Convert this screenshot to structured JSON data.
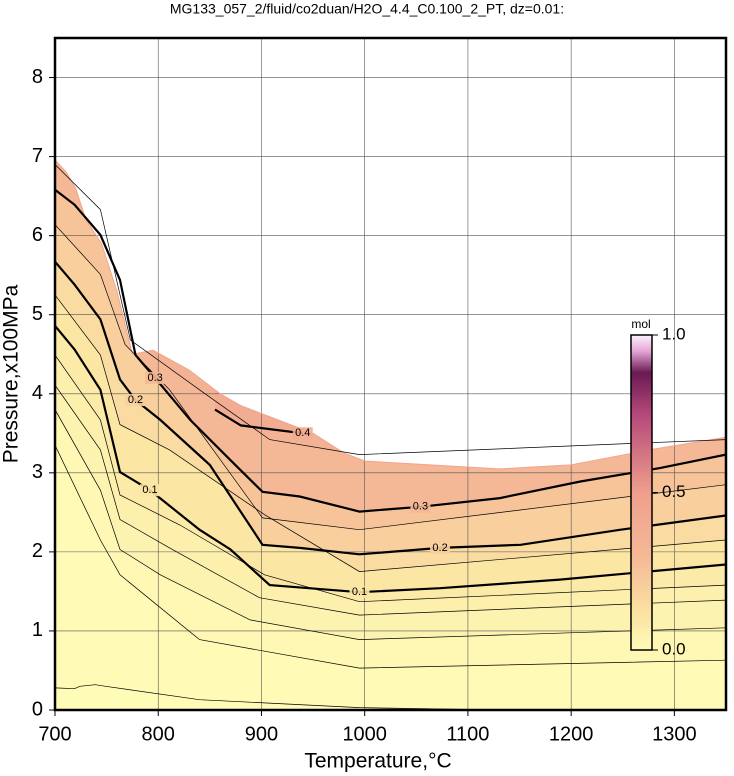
{
  "chart_data": {
    "type": "contour",
    "title": "MG133_057_2/fluid/co2duan/H2O_4.4_C0.100_2_PT, dz=0.01:",
    "x_label": "Temperature,°C",
    "y_label": "Pressure,x100MPa",
    "xlim": [
      700,
      1350
    ],
    "ylim": [
      0,
      8.5
    ],
    "xticks": [
      700,
      800,
      900,
      1000,
      1100,
      1200,
      1300
    ],
    "yticks": [
      0,
      1,
      2,
      3,
      4,
      5,
      6,
      7,
      8
    ],
    "grid": true,
    "colorbar": {
      "label": "mol",
      "lim": [
        0,
        1
      ],
      "ticks": [
        {
          "value": 0,
          "label": "0.0"
        },
        0.5,
        {
          "value": 1,
          "label": "1.0"
        }
      ],
      "colormap": [
        {
          "value": 0,
          "color": "#fffcb8"
        },
        {
          "value": 0.1,
          "color": "#fbe6a4"
        },
        {
          "value": 0.3,
          "color": "#f5b896"
        },
        {
          "value": 0.5,
          "color": "#ef9f8c"
        },
        {
          "value": 0.75,
          "color": "#b4487a"
        },
        {
          "value": 0.88,
          "color": "#6a1a52"
        },
        {
          "value": 0.95,
          "color": "#e6a8d6"
        },
        {
          "value": 1,
          "color": "#fff2ff"
        }
      ]
    },
    "extent": {
      "x": [
        700,
        711,
        720,
        730,
        745,
        760,
        775,
        795,
        830,
        860,
        880,
        910,
        950,
        980,
        1000,
        1130,
        1200,
        1280,
        1350
      ],
      "values": [
        6.96,
        6.8,
        6.6,
        6.2,
        5.9,
        5.3,
        4.5,
        4.55,
        4.3,
        4.0,
        3.85,
        3.7,
        3.5,
        3.25,
        3.15,
        3.05,
        3.1,
        3.3,
        3.45
      ]
    },
    "contours": [
      {
        "level": 0.01,
        "style": "thin",
        "x": [
          700,
          719,
          724,
          739,
          749,
          840,
          995,
          1131,
          1350
        ],
        "values": [
          0.28,
          0.27,
          0.3,
          0.32,
          0.3,
          0.13,
          0.03,
          0.0,
          0.0
        ]
      },
      {
        "level": 0.02,
        "style": "thin",
        "x": [
          700,
          744,
          763,
          840,
          995,
          1350
        ],
        "values": [
          3.35,
          2.15,
          1.71,
          0.89,
          0.53,
          0.63
        ]
      },
      {
        "level": 0.04,
        "style": "thin",
        "x": [
          700,
          744,
          763,
          802,
          889,
          995,
          1350
        ],
        "values": [
          3.8,
          2.78,
          2.03,
          1.71,
          1.14,
          0.89,
          1.04
        ]
      },
      {
        "level": 0.06,
        "style": "thin",
        "x": [
          700,
          744,
          763,
          811,
          898,
          995,
          1350
        ],
        "values": [
          4.11,
          3.29,
          2.41,
          2.05,
          1.42,
          1.2,
          1.39
        ]
      },
      {
        "level": 0.08,
        "style": "thin",
        "x": [
          700,
          744,
          763,
          821,
          903,
          995,
          1350
        ],
        "values": [
          4.49,
          3.67,
          2.72,
          2.34,
          1.71,
          1.37,
          1.58
        ]
      },
      {
        "level": 0.1,
        "style": "bold",
        "x": [
          700,
          719,
          744,
          763,
          792,
          840,
          870,
          908,
          995,
          1073,
          1189,
          1350
        ],
        "values": [
          4.86,
          4.56,
          4.05,
          3.01,
          2.78,
          2.28,
          2.03,
          1.58,
          1.49,
          1.54,
          1.65,
          1.84
        ]
      },
      {
        "level": 0.15,
        "style": "thin",
        "x": [
          700,
          744,
          763,
          811,
          903,
          995,
          1350
        ],
        "values": [
          5.25,
          4.49,
          3.61,
          3.29,
          2.47,
          1.75,
          2.15
        ]
      },
      {
        "level": 0.2,
        "style": "bold",
        "x": [
          700,
          719,
          744,
          763,
          778,
          802,
          850,
          901,
          937,
          995,
          1073,
          1151,
          1248,
          1350
        ],
        "values": [
          5.67,
          5.38,
          4.94,
          4.18,
          3.92,
          3.67,
          3.1,
          2.09,
          2.05,
          1.97,
          2.05,
          2.09,
          2.28,
          2.46
        ]
      },
      {
        "level": 0.25,
        "style": "thin",
        "x": [
          700,
          744,
          768,
          811,
          901,
          995,
          1350
        ],
        "values": [
          6.14,
          5.51,
          4.62,
          4.05,
          2.43,
          2.28,
          2.85
        ]
      },
      {
        "level": 0.3,
        "style": "bold",
        "x": [
          700,
          719,
          744,
          763,
          778,
          797,
          831,
          870,
          901,
          937,
          995,
          1054,
          1131,
          1209,
          1286,
          1350
        ],
        "values": [
          6.58,
          6.39,
          6.01,
          5.44,
          4.49,
          4.2,
          3.67,
          3.16,
          2.76,
          2.7,
          2.51,
          2.57,
          2.68,
          2.89,
          3.06,
          3.23
        ]
      },
      {
        "level": 0.35,
        "style": "thin",
        "x": [
          700,
          744,
          773,
          840,
          908,
          995,
          1350
        ],
        "values": [
          6.9,
          6.33,
          4.68,
          4.05,
          3.42,
          3.23,
          3.42
        ]
      },
      {
        "level": 0.4,
        "style": "bold",
        "x": [
          855,
          880,
          940
        ],
        "values": [
          3.8,
          3.6,
          3.5
        ]
      }
    ]
  }
}
